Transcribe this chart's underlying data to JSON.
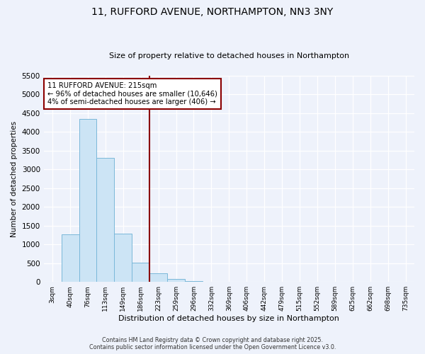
{
  "title": "11, RUFFORD AVENUE, NORTHAMPTON, NN3 3NY",
  "subtitle": "Size of property relative to detached houses in Northampton",
  "xlabel": "Distribution of detached houses by size in Northampton",
  "ylabel": "Number of detached properties",
  "bar_labels": [
    "3sqm",
    "40sqm",
    "76sqm",
    "113sqm",
    "149sqm",
    "186sqm",
    "223sqm",
    "259sqm",
    "296sqm",
    "332sqm",
    "369sqm",
    "406sqm",
    "442sqm",
    "479sqm",
    "515sqm",
    "552sqm",
    "589sqm",
    "625sqm",
    "662sqm",
    "698sqm",
    "735sqm"
  ],
  "bar_values": [
    0,
    1270,
    4350,
    3300,
    1280,
    510,
    230,
    80,
    30,
    10,
    0,
    0,
    0,
    0,
    0,
    0,
    0,
    0,
    0,
    0,
    0
  ],
  "bar_color": "#cce4f5",
  "bar_edge_color": "#7ab8d9",
  "vline_color": "#8b0000",
  "annotation_text": "11 RUFFORD AVENUE: 215sqm\n← 96% of detached houses are smaller (10,646)\n4% of semi-detached houses are larger (406) →",
  "annotation_box_color": "#ffffff",
  "annotation_box_edge": "#8b0000",
  "ylim": [
    0,
    5500
  ],
  "yticks": [
    0,
    500,
    1000,
    1500,
    2000,
    2500,
    3000,
    3500,
    4000,
    4500,
    5000,
    5500
  ],
  "background_color": "#eef2fb",
  "plot_background": "#eef2fb",
  "grid_color": "#ffffff",
  "footer_line1": "Contains HM Land Registry data © Crown copyright and database right 2025.",
  "footer_line2": "Contains public sector information licensed under the Open Government Licence v3.0."
}
